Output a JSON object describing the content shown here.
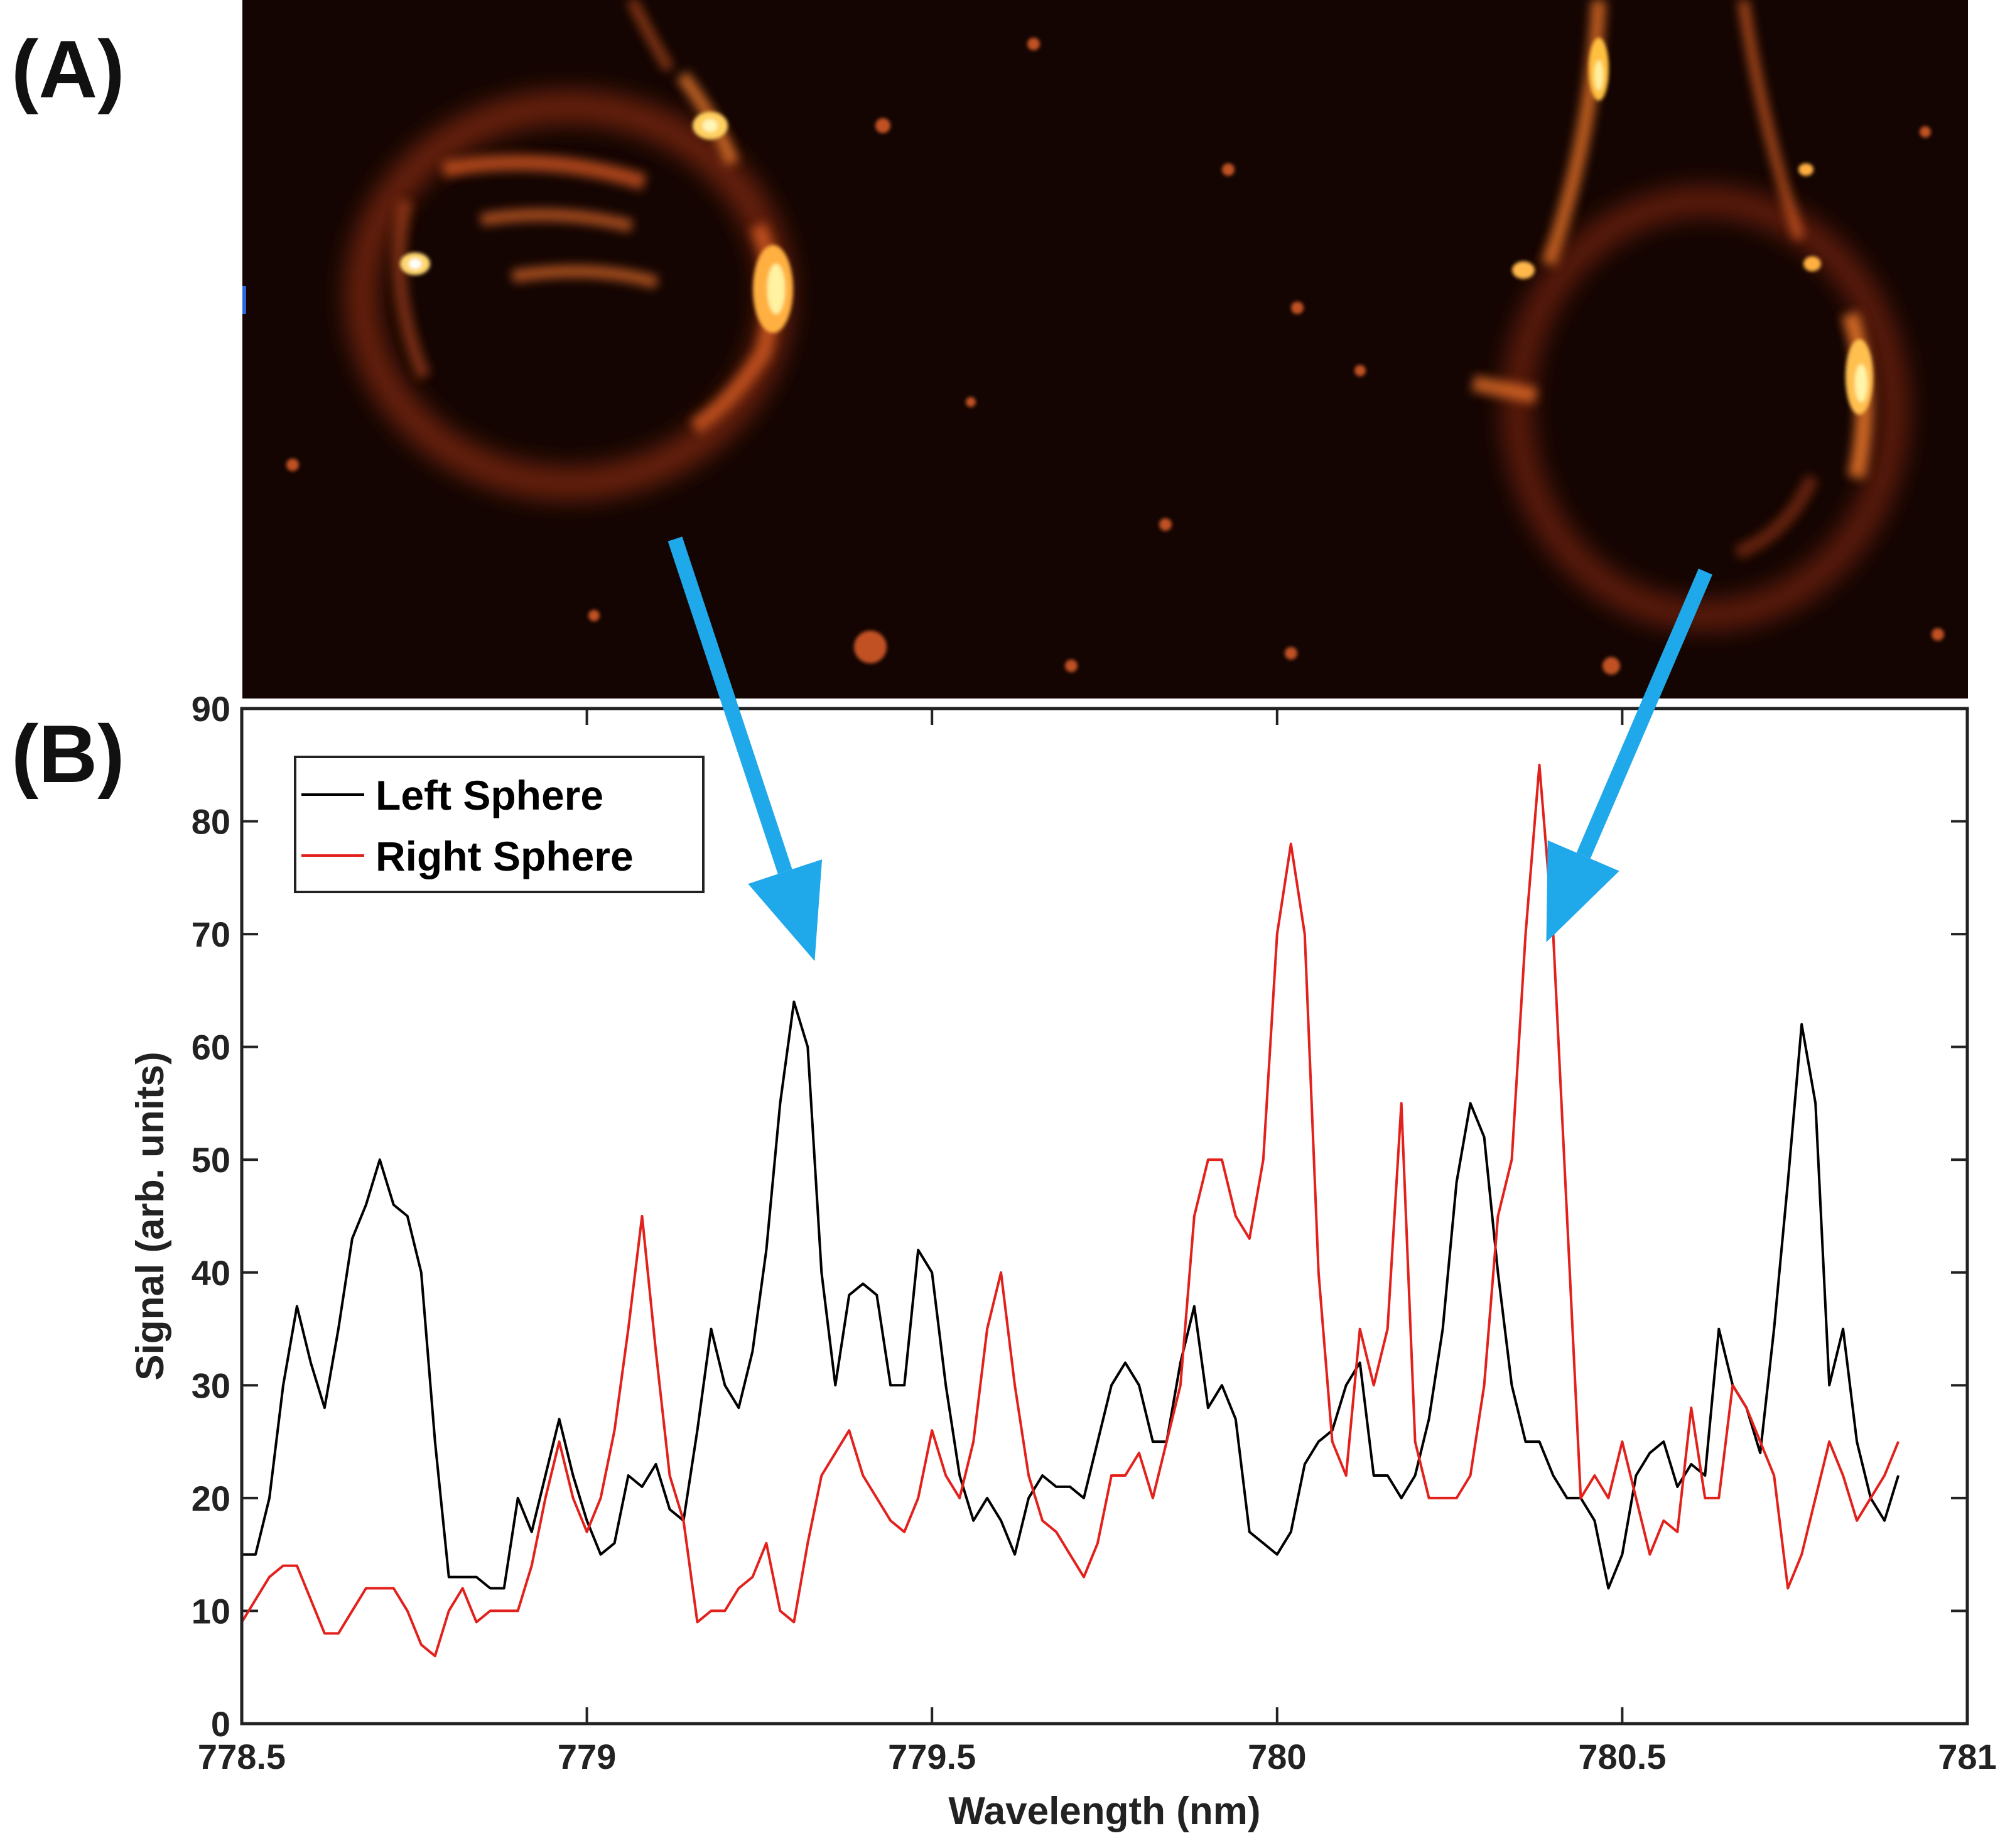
{
  "panels": {
    "a_label": "(A)",
    "b_label": "(B)"
  },
  "micrograph": {
    "description_icon": "fluorescence-micrograph",
    "colors": {
      "background": "#140503",
      "glow": "#ff7a1a",
      "hot": "#fff2a0"
    }
  },
  "arrows": {
    "color": "#1fa8ea",
    "left_target_wavelength": 779.33,
    "right_target_wavelength": 780.39
  },
  "chart_data": {
    "type": "line",
    "title": "",
    "xlabel": "Wavelength (nm)",
    "ylabel": "Signal (arb. units)",
    "xlim": [
      778.5,
      781
    ],
    "ylim": [
      0,
      90
    ],
    "xticks": [
      778.5,
      779,
      779.5,
      780,
      780.5,
      781
    ],
    "xtick_labels": [
      "778.5",
      "779",
      "779.5",
      "780",
      "780.5",
      "781"
    ],
    "yticks": [
      0,
      10,
      20,
      30,
      40,
      50,
      60,
      70,
      80,
      90
    ],
    "ytick_labels": [
      "0",
      "10",
      "20",
      "30",
      "40",
      "50",
      "60",
      "70",
      "80",
      "90"
    ],
    "legend_position": "top-left",
    "series": [
      {
        "name": "Left Sphere",
        "color": "#000000",
        "x": [
          778.5,
          778.52,
          778.54,
          778.56,
          778.58,
          778.6,
          778.62,
          778.64,
          778.66,
          778.68,
          778.7,
          778.72,
          778.74,
          778.76,
          778.78,
          778.8,
          778.82,
          778.84,
          778.86,
          778.88,
          778.9,
          778.92,
          778.94,
          778.96,
          778.98,
          779.0,
          779.02,
          779.04,
          779.06,
          779.08,
          779.1,
          779.12,
          779.14,
          779.16,
          779.18,
          779.2,
          779.22,
          779.24,
          779.26,
          779.28,
          779.3,
          779.32,
          779.34,
          779.36,
          779.38,
          779.4,
          779.42,
          779.44,
          779.46,
          779.48,
          779.5,
          779.52,
          779.54,
          779.56,
          779.58,
          779.6,
          779.62,
          779.64,
          779.66,
          779.68,
          779.7,
          779.72,
          779.74,
          779.76,
          779.78,
          779.8,
          779.82,
          779.84,
          779.86,
          779.88,
          779.9,
          779.92,
          779.94,
          779.96,
          779.98,
          780.0,
          780.02,
          780.04,
          780.06,
          780.08,
          780.1,
          780.12,
          780.14,
          780.16,
          780.18,
          780.2,
          780.22,
          780.24,
          780.26,
          780.28,
          780.3,
          780.32,
          780.34,
          780.36,
          780.38,
          780.4,
          780.42,
          780.44,
          780.46,
          780.48,
          780.5,
          780.52,
          780.54,
          780.56,
          780.58,
          780.6,
          780.62,
          780.64,
          780.66,
          780.68,
          780.7,
          780.72,
          780.74,
          780.76,
          780.78,
          780.8,
          780.82,
          780.84,
          780.86,
          780.88,
          780.9
        ],
        "values": [
          15,
          15,
          20,
          30,
          37,
          32,
          28,
          35,
          43,
          46,
          50,
          46,
          45,
          40,
          25,
          13,
          13,
          13,
          12,
          12,
          20,
          17,
          22,
          27,
          22,
          18,
          15,
          16,
          22,
          21,
          23,
          19,
          18,
          26,
          35,
          30,
          28,
          33,
          42,
          55,
          64,
          60,
          40,
          30,
          38,
          39,
          38,
          30,
          30,
          42,
          40,
          30,
          22,
          18,
          20,
          18,
          15,
          20,
          22,
          21,
          21,
          20,
          25,
          30,
          32,
          30,
          25,
          25,
          32,
          37,
          28,
          30,
          27,
          17,
          16,
          15,
          17,
          23,
          25,
          26,
          30,
          32,
          22,
          22,
          20,
          22,
          27,
          35,
          48,
          55,
          52,
          40,
          30,
          25,
          25,
          22,
          20,
          20,
          18,
          12,
          15,
          22,
          24,
          25,
          21,
          23,
          22,
          35,
          30,
          28,
          24,
          35,
          48,
          62,
          55,
          30,
          35,
          25,
          20,
          18,
          22
        ]
      },
      {
        "name": "Right Sphere",
        "color": "#e3211c",
        "x": [
          778.5,
          778.52,
          778.54,
          778.56,
          778.58,
          778.6,
          778.62,
          778.64,
          778.66,
          778.68,
          778.7,
          778.72,
          778.74,
          778.76,
          778.78,
          778.8,
          778.82,
          778.84,
          778.86,
          778.88,
          778.9,
          778.92,
          778.94,
          778.96,
          778.98,
          779.0,
          779.02,
          779.04,
          779.06,
          779.08,
          779.1,
          779.12,
          779.14,
          779.16,
          779.18,
          779.2,
          779.22,
          779.24,
          779.26,
          779.28,
          779.3,
          779.32,
          779.34,
          779.36,
          779.38,
          779.4,
          779.42,
          779.44,
          779.46,
          779.48,
          779.5,
          779.52,
          779.54,
          779.56,
          779.58,
          779.6,
          779.62,
          779.64,
          779.66,
          779.68,
          779.7,
          779.72,
          779.74,
          779.76,
          779.78,
          779.8,
          779.82,
          779.84,
          779.86,
          779.88,
          779.9,
          779.92,
          779.94,
          779.96,
          779.98,
          780.0,
          780.02,
          780.04,
          780.06,
          780.08,
          780.1,
          780.12,
          780.14,
          780.16,
          780.18,
          780.2,
          780.22,
          780.24,
          780.26,
          780.28,
          780.3,
          780.32,
          780.34,
          780.36,
          780.38,
          780.4,
          780.42,
          780.44,
          780.46,
          780.48,
          780.5,
          780.52,
          780.54,
          780.56,
          780.58,
          780.6,
          780.62,
          780.64,
          780.66,
          780.68,
          780.7,
          780.72,
          780.74,
          780.76,
          780.78,
          780.8,
          780.82,
          780.84,
          780.86,
          780.88,
          780.9
        ],
        "values": [
          9,
          11,
          13,
          14,
          14,
          11,
          8,
          8,
          10,
          12,
          12,
          12,
          10,
          7,
          6,
          10,
          12,
          9,
          10,
          10,
          10,
          14,
          20,
          25,
          20,
          17,
          20,
          26,
          35,
          45,
          33,
          22,
          18,
          9,
          10,
          10,
          12,
          13,
          16,
          10,
          9,
          16,
          22,
          24,
          26,
          22,
          20,
          18,
          17,
          20,
          26,
          22,
          20,
          25,
          35,
          40,
          30,
          22,
          18,
          17,
          15,
          13,
          16,
          22,
          22,
          24,
          20,
          25,
          30,
          45,
          50,
          50,
          45,
          43,
          50,
          70,
          78,
          70,
          40,
          25,
          22,
          35,
          30,
          35,
          55,
          25,
          20,
          20,
          20,
          22,
          30,
          45,
          50,
          70,
          85,
          70,
          45,
          20,
          22,
          20,
          25,
          20,
          15,
          18,
          17,
          28,
          20,
          20,
          30,
          28,
          25,
          22,
          12,
          15,
          20,
          25,
          22,
          18,
          20,
          22,
          25
        ]
      }
    ]
  }
}
